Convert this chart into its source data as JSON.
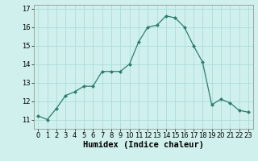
{
  "x": [
    0,
    1,
    2,
    3,
    4,
    5,
    6,
    7,
    8,
    9,
    10,
    11,
    12,
    13,
    14,
    15,
    16,
    17,
    18,
    19,
    20,
    21,
    22,
    23
  ],
  "y": [
    11.2,
    11.0,
    11.6,
    12.3,
    12.5,
    12.8,
    12.8,
    13.6,
    13.6,
    13.6,
    14.0,
    15.2,
    16.0,
    16.1,
    16.6,
    16.5,
    16.0,
    15.0,
    14.1,
    11.8,
    12.1,
    11.9,
    11.5,
    11.4
  ],
  "line_color": "#2e7d6e",
  "marker": "D",
  "marker_size": 2,
  "bg_color": "#cff0ec",
  "grid_color": "#aaddd8",
  "xlabel": "Humidex (Indice chaleur)",
  "ylim": [
    10.5,
    17.2
  ],
  "xlim": [
    -0.5,
    23.5
  ],
  "yticks": [
    11,
    12,
    13,
    14,
    15,
    16,
    17
  ],
  "xticks": [
    0,
    1,
    2,
    3,
    4,
    5,
    6,
    7,
    8,
    9,
    10,
    11,
    12,
    13,
    14,
    15,
    16,
    17,
    18,
    19,
    20,
    21,
    22,
    23
  ],
  "axis_fontsize": 6.5,
  "tick_fontsize": 6,
  "xlabel_fontsize": 7.5,
  "linewidth": 0.9
}
